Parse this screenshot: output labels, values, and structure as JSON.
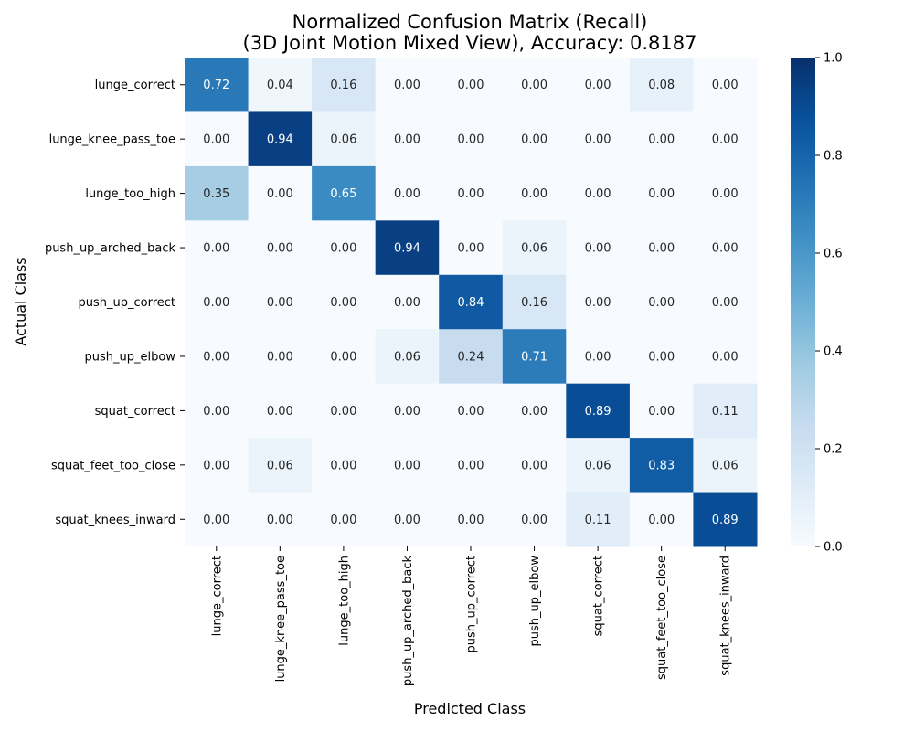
{
  "chart_data": {
    "type": "heatmap",
    "title_line1": "Normalized Confusion Matrix (Recall)",
    "title_line2": "(3D Joint Motion Mixed View), Accuracy: 0.8187",
    "xlabel": "Predicted Class",
    "ylabel": "Actual Class",
    "categories": [
      "lunge_correct",
      "lunge_knee_pass_toe",
      "lunge_too_high",
      "push_up_arched_back",
      "push_up_correct",
      "push_up_elbow",
      "squat_correct",
      "squat_feet_too_close",
      "squat_knees_inward"
    ],
    "values": [
      [
        0.72,
        0.04,
        0.16,
        0.0,
        0.0,
        0.0,
        0.0,
        0.08,
        0.0
      ],
      [
        0.0,
        0.94,
        0.06,
        0.0,
        0.0,
        0.0,
        0.0,
        0.0,
        0.0
      ],
      [
        0.35,
        0.0,
        0.65,
        0.0,
        0.0,
        0.0,
        0.0,
        0.0,
        0.0
      ],
      [
        0.0,
        0.0,
        0.0,
        0.94,
        0.0,
        0.06,
        0.0,
        0.0,
        0.0
      ],
      [
        0.0,
        0.0,
        0.0,
        0.0,
        0.84,
        0.16,
        0.0,
        0.0,
        0.0
      ],
      [
        0.0,
        0.0,
        0.0,
        0.06,
        0.24,
        0.71,
        0.0,
        0.0,
        0.0
      ],
      [
        0.0,
        0.0,
        0.0,
        0.0,
        0.0,
        0.0,
        0.89,
        0.0,
        0.11
      ],
      [
        0.0,
        0.06,
        0.0,
        0.0,
        0.0,
        0.0,
        0.06,
        0.83,
        0.06
      ],
      [
        0.0,
        0.0,
        0.0,
        0.0,
        0.0,
        0.0,
        0.11,
        0.0,
        0.89
      ]
    ],
    "value_format": "0.00",
    "colormap": "Blues",
    "colorbar": {
      "range": [
        0.0,
        1.0
      ],
      "ticks": [
        "0.0",
        "0.2",
        "0.4",
        "0.6",
        "0.8",
        "1.0"
      ],
      "tick_values": [
        0.0,
        0.2,
        0.4,
        0.6,
        0.8,
        1.0
      ]
    },
    "colors": {
      "low": "#f7fbff",
      "high": "#08306b",
      "text_dark": "#262626",
      "text_light": "#ffffff"
    }
  }
}
